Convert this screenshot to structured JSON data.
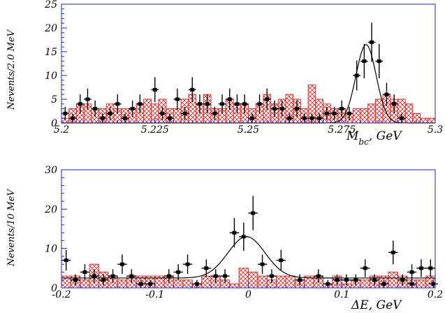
{
  "chart_data": [
    {
      "type": "histogram",
      "xlabel": "M_bc,  GeV",
      "xlabel_main": "M",
      "xlabel_sub": "bc",
      "xlabel_unit": ",   GeV",
      "ylabel": "Nevents/2.0 MeV",
      "xlim": [
        5.2,
        5.3
      ],
      "ylim": [
        0,
        25
      ],
      "x_ticks": [
        5.2,
        5.225,
        5.25,
        5.275,
        5.3
      ],
      "x_tick_labels": [
        "5.2",
        "5.225",
        "5.25",
        "5.275",
        "5.3"
      ],
      "y_ticks": [
        0,
        5,
        10,
        15,
        20,
        25
      ],
      "y_tick_labels": [
        "0",
        "5",
        "10",
        "15",
        "20",
        "25"
      ],
      "bin_width": 0.002,
      "bin_start": 5.2,
      "histogram_values": [
        1,
        3,
        4,
        4,
        3,
        3,
        4,
        3,
        3,
        3,
        4,
        5,
        4,
        5,
        3,
        3,
        5,
        6,
        4,
        6,
        3,
        3,
        5,
        4,
        4,
        3,
        4,
        6,
        4,
        5,
        6,
        5,
        3,
        8,
        5,
        4,
        3,
        3,
        2,
        3,
        3,
        4,
        5,
        6,
        5,
        5,
        4,
        2,
        1,
        1
      ],
      "data_points": [
        {
          "x": 5.201,
          "y": 2
        },
        {
          "x": 5.203,
          "y": 1
        },
        {
          "x": 5.205,
          "y": 4
        },
        {
          "x": 5.207,
          "y": 5
        },
        {
          "x": 5.209,
          "y": 3
        },
        {
          "x": 5.211,
          "y": 1
        },
        {
          "x": 5.213,
          "y": 2
        },
        {
          "x": 5.215,
          "y": 4
        },
        {
          "x": 5.217,
          "y": 1
        },
        {
          "x": 5.219,
          "y": 3
        },
        {
          "x": 5.221,
          "y": 4
        },
        {
          "x": 5.225,
          "y": 7
        },
        {
          "x": 5.227,
          "y": 2
        },
        {
          "x": 5.229,
          "y": 1
        },
        {
          "x": 5.231,
          "y": 5
        },
        {
          "x": 5.233,
          "y": 2
        },
        {
          "x": 5.235,
          "y": 7
        },
        {
          "x": 5.237,
          "y": 4
        },
        {
          "x": 5.239,
          "y": 4
        },
        {
          "x": 5.241,
          "y": 2
        },
        {
          "x": 5.243,
          "y": 4
        },
        {
          "x": 5.245,
          "y": 5
        },
        {
          "x": 5.247,
          "y": 4
        },
        {
          "x": 5.249,
          "y": 4
        },
        {
          "x": 5.251,
          "y": 1
        },
        {
          "x": 5.253,
          "y": 4
        },
        {
          "x": 5.255,
          "y": 5
        },
        {
          "x": 5.257,
          "y": 3
        },
        {
          "x": 5.259,
          "y": 3
        },
        {
          "x": 5.261,
          "y": 1
        },
        {
          "x": 5.263,
          "y": 3
        },
        {
          "x": 5.265,
          "y": 1
        },
        {
          "x": 5.267,
          "y": 1
        },
        {
          "x": 5.269,
          "y": 1
        },
        {
          "x": 5.271,
          "y": 2
        },
        {
          "x": 5.273,
          "y": 2
        },
        {
          "x": 5.275,
          "y": 3
        },
        {
          "x": 5.277,
          "y": 2
        },
        {
          "x": 5.279,
          "y": 10
        },
        {
          "x": 5.281,
          "y": 13
        },
        {
          "x": 5.283,
          "y": 17
        },
        {
          "x": 5.285,
          "y": 13
        },
        {
          "x": 5.287,
          "y": 6
        },
        {
          "x": 5.289,
          "y": 4
        },
        {
          "x": 5.291,
          "y": 1
        }
      ],
      "fit": {
        "type": "gaussian+flat",
        "mean": 5.2815,
        "sigma": 0.0027,
        "amplitude": 16.5,
        "baseline": 0
      }
    },
    {
      "type": "histogram",
      "xlabel": "ΔE,  GeV",
      "xlabel_main": "ΔE",
      "xlabel_unit": ",   GeV",
      "ylabel": "Nevents/10 MeV",
      "xlim": [
        -0.2,
        0.2
      ],
      "ylim": [
        0,
        30
      ],
      "x_ticks": [
        -0.2,
        -0.1,
        0,
        0.1,
        0.2
      ],
      "x_tick_labels": [
        "-0.2",
        "-0.1",
        "0",
        "0.1",
        "0.2"
      ],
      "y_ticks": [
        0,
        10,
        20,
        30
      ],
      "y_tick_labels": [
        "0",
        "10",
        "20",
        "30"
      ],
      "bin_width": 0.01,
      "bin_start": -0.2,
      "histogram_values": [
        3,
        3,
        2,
        6,
        4,
        3,
        2,
        3,
        3,
        3,
        3,
        3,
        2,
        2,
        1,
        3,
        3,
        2,
        1,
        5,
        4,
        3,
        2,
        3,
        3,
        2,
        3,
        3,
        1,
        3,
        1,
        2,
        2,
        3,
        3,
        4,
        3,
        2,
        2,
        3,
        3
      ],
      "data_points": [
        {
          "x": -0.195,
          "y": 7
        },
        {
          "x": -0.185,
          "y": 2
        },
        {
          "x": -0.175,
          "y": 4
        },
        {
          "x": -0.165,
          "y": 3
        },
        {
          "x": -0.155,
          "y": 2
        },
        {
          "x": -0.145,
          "y": 3
        },
        {
          "x": -0.135,
          "y": 6
        },
        {
          "x": -0.125,
          "y": 3
        },
        {
          "x": -0.115,
          "y": 1
        },
        {
          "x": -0.105,
          "y": 1
        },
        {
          "x": -0.085,
          "y": 3
        },
        {
          "x": -0.075,
          "y": 4
        },
        {
          "x": -0.065,
          "y": 6
        },
        {
          "x": -0.055,
          "y": 1
        },
        {
          "x": -0.045,
          "y": 5
        },
        {
          "x": -0.035,
          "y": 3
        },
        {
          "x": -0.025,
          "y": 3
        },
        {
          "x": -0.015,
          "y": 14
        },
        {
          "x": -0.005,
          "y": 13
        },
        {
          "x": 0.005,
          "y": 19
        },
        {
          "x": 0.015,
          "y": 6
        },
        {
          "x": 0.025,
          "y": 3
        },
        {
          "x": 0.035,
          "y": 7
        },
        {
          "x": 0.055,
          "y": 2
        },
        {
          "x": 0.075,
          "y": 3
        },
        {
          "x": 0.085,
          "y": 1
        },
        {
          "x": 0.095,
          "y": 2
        },
        {
          "x": 0.105,
          "y": 2
        },
        {
          "x": 0.115,
          "y": 2
        },
        {
          "x": 0.125,
          "y": 5
        },
        {
          "x": 0.135,
          "y": 2
        },
        {
          "x": 0.145,
          "y": 1
        },
        {
          "x": 0.155,
          "y": 9
        },
        {
          "x": 0.165,
          "y": 2
        },
        {
          "x": 0.175,
          "y": 4
        },
        {
          "x": 0.185,
          "y": 5
        },
        {
          "x": 0.195,
          "y": 5
        },
        {
          "x": 0.175,
          "y": 1
        },
        {
          "x": 0.198,
          "y": 1
        }
      ],
      "fit": {
        "type": "gaussian+flat",
        "mean": -0.002,
        "sigma": 0.02,
        "amplitude": 10.5,
        "baseline": 2.5
      }
    }
  ],
  "colors": {
    "frame": "#2020c0",
    "histogram": "#e03030",
    "points": "#000000",
    "fit": "#000000"
  }
}
